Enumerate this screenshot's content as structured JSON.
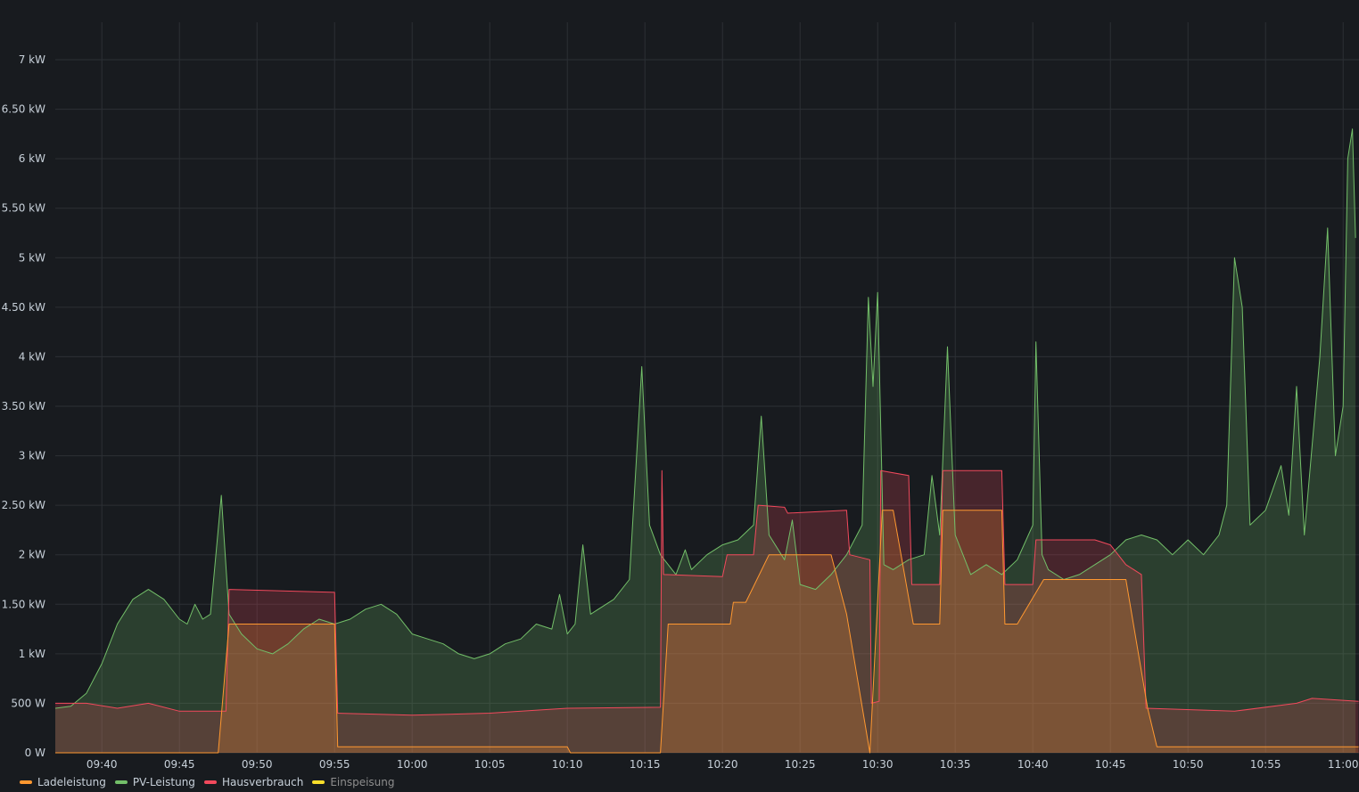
{
  "chart_data": {
    "type": "area",
    "y_ticks": [
      "0 W",
      "500 W",
      "1 kW",
      "1.50 kW",
      "2 kW",
      "2.50 kW",
      "3 kW",
      "3.50 kW",
      "4 kW",
      "4.50 kW",
      "5 kW",
      "5.50 kW",
      "6 kW",
      "6.50 kW",
      "7 kW"
    ],
    "x_ticks": [
      "09:40",
      "09:45",
      "09:50",
      "09:55",
      "10:00",
      "10:05",
      "10:10",
      "10:15",
      "10:20",
      "10:25",
      "10:30",
      "10:35",
      "10:40",
      "10:45",
      "10:50",
      "10:55",
      "11:00"
    ],
    "y_unit": "W",
    "ylim": [
      0,
      7000
    ],
    "grid": true,
    "legend_position": "bottom-left",
    "series": [
      {
        "name": "PV-Leistung",
        "color": "#73bf69",
        "points": [
          [
            "09:37",
            450
          ],
          [
            "09:38",
            470
          ],
          [
            "09:39",
            600
          ],
          [
            "09:40",
            900
          ],
          [
            "09:41",
            1300
          ],
          [
            "09:42",
            1550
          ],
          [
            "09:43",
            1650
          ],
          [
            "09:44",
            1550
          ],
          [
            "09:45",
            1350
          ],
          [
            "09:45.5",
            1300
          ],
          [
            "09:46",
            1500
          ],
          [
            "09:46.5",
            1350
          ],
          [
            "09:47",
            1400
          ],
          [
            "09:47.7",
            2600
          ],
          [
            "09:48.2",
            1400
          ],
          [
            "09:49",
            1200
          ],
          [
            "09:50",
            1050
          ],
          [
            "09:51",
            1000
          ],
          [
            "09:52",
            1100
          ],
          [
            "09:53",
            1250
          ],
          [
            "09:54",
            1350
          ],
          [
            "09:55",
            1300
          ],
          [
            "09:56",
            1350
          ],
          [
            "09:57",
            1450
          ],
          [
            "09:58",
            1500
          ],
          [
            "09:59",
            1400
          ],
          [
            "10:00",
            1200
          ],
          [
            "10:01",
            1150
          ],
          [
            "10:02",
            1100
          ],
          [
            "10:03",
            1000
          ],
          [
            "10:04",
            950
          ],
          [
            "10:05",
            1000
          ],
          [
            "10:06",
            1100
          ],
          [
            "10:07",
            1150
          ],
          [
            "10:08",
            1300
          ],
          [
            "10:09",
            1250
          ],
          [
            "10:09.5",
            1600
          ],
          [
            "10:10",
            1200
          ],
          [
            "10:10.5",
            1300
          ],
          [
            "10:11",
            2100
          ],
          [
            "10:11.5",
            1400
          ],
          [
            "10:12",
            1450
          ],
          [
            "10:13",
            1550
          ],
          [
            "10:14",
            1750
          ],
          [
            "10:14.8",
            3900
          ],
          [
            "10:15.3",
            2300
          ],
          [
            "10:16",
            2000
          ],
          [
            "10:17",
            1800
          ],
          [
            "10:17.6",
            2050
          ],
          [
            "10:18",
            1850
          ],
          [
            "10:19",
            2000
          ],
          [
            "10:20",
            2100
          ],
          [
            "10:21",
            2150
          ],
          [
            "10:22",
            2300
          ],
          [
            "10:22.5",
            3400
          ],
          [
            "10:23",
            2200
          ],
          [
            "10:24",
            1950
          ],
          [
            "10:24.5",
            2350
          ],
          [
            "10:25",
            1700
          ],
          [
            "10:26",
            1650
          ],
          [
            "10:27",
            1800
          ],
          [
            "10:28",
            2000
          ],
          [
            "10:29",
            2300
          ],
          [
            "10:29.4",
            4600
          ],
          [
            "10:29.7",
            3700
          ],
          [
            "10:30",
            4650
          ],
          [
            "10:30.4",
            1900
          ],
          [
            "10:31",
            1850
          ],
          [
            "10:32",
            1950
          ],
          [
            "10:33",
            2000
          ],
          [
            "10:33.5",
            2800
          ],
          [
            "10:34",
            2200
          ],
          [
            "10:34.5",
            4100
          ],
          [
            "10:35",
            2200
          ],
          [
            "10:36",
            1800
          ],
          [
            "10:37",
            1900
          ],
          [
            "10:38",
            1800
          ],
          [
            "10:39",
            1950
          ],
          [
            "10:40",
            2300
          ],
          [
            "10:40.2",
            4150
          ],
          [
            "10:40.6",
            2000
          ],
          [
            "10:41",
            1850
          ],
          [
            "10:42",
            1750
          ],
          [
            "10:43",
            1800
          ],
          [
            "10:44",
            1900
          ],
          [
            "10:45",
            2000
          ],
          [
            "10:46",
            2150
          ],
          [
            "10:47",
            2200
          ],
          [
            "10:48",
            2150
          ],
          [
            "10:49",
            2000
          ],
          [
            "10:50",
            2150
          ],
          [
            "10:51",
            2000
          ],
          [
            "10:52",
            2200
          ],
          [
            "10:52.5",
            2500
          ],
          [
            "10:53",
            5000
          ],
          [
            "10:53.5",
            4500
          ],
          [
            "10:54",
            2300
          ],
          [
            "10:55",
            2450
          ],
          [
            "10:56",
            2900
          ],
          [
            "10:56.5",
            2400
          ],
          [
            "10:57",
            3700
          ],
          [
            "10:57.5",
            2200
          ],
          [
            "10:58",
            3100
          ],
          [
            "10:58.5",
            4000
          ],
          [
            "10:59",
            5300
          ],
          [
            "10:59.5",
            3000
          ],
          [
            "11:00",
            3500
          ],
          [
            "11:00.3",
            6000
          ],
          [
            "11:00.6",
            6300
          ],
          [
            "11:00.8",
            5200
          ]
        ]
      },
      {
        "name": "Hausverbrauch",
        "color": "#f2495c",
        "points": [
          [
            "09:37",
            500
          ],
          [
            "09:39",
            500
          ],
          [
            "09:41",
            450
          ],
          [
            "09:43",
            500
          ],
          [
            "09:45",
            420
          ],
          [
            "09:48",
            420
          ],
          [
            "09:48.2",
            1650
          ],
          [
            "09:55",
            1620
          ],
          [
            "09:55.2",
            400
          ],
          [
            "10:00",
            380
          ],
          [
            "10:05",
            400
          ],
          [
            "10:10",
            450
          ],
          [
            "10:16",
            460
          ],
          [
            "10:16.1",
            2850
          ],
          [
            "10:16.2",
            1800
          ],
          [
            "10:20",
            1780
          ],
          [
            "10:20.3",
            2000
          ],
          [
            "10:22",
            2000
          ],
          [
            "10:22.3",
            2500
          ],
          [
            "10:24",
            2480
          ],
          [
            "10:24.2",
            2420
          ],
          [
            "10:28",
            2450
          ],
          [
            "10:28.2",
            2000
          ],
          [
            "10:29.5",
            1950
          ],
          [
            "10:29.6",
            500
          ],
          [
            "10:30.1",
            520
          ],
          [
            "10:30.2",
            2850
          ],
          [
            "10:32",
            2800
          ],
          [
            "10:32.2",
            1700
          ],
          [
            "10:34",
            1700
          ],
          [
            "10:34.2",
            2850
          ],
          [
            "10:38",
            2850
          ],
          [
            "10:38.2",
            1700
          ],
          [
            "10:40",
            1700
          ],
          [
            "10:40.2",
            2150
          ],
          [
            "10:44",
            2150
          ],
          [
            "10:45",
            2100
          ],
          [
            "10:46",
            1900
          ],
          [
            "10:47",
            1800
          ],
          [
            "10:47.3",
            450
          ],
          [
            "10:53",
            420
          ],
          [
            "10:57",
            500
          ],
          [
            "10:58",
            550
          ],
          [
            "11:01",
            520
          ]
        ]
      },
      {
        "name": "Ladeleistung",
        "color": "#ff9830",
        "points": [
          [
            "09:37",
            0
          ],
          [
            "09:47.5",
            0
          ],
          [
            "09:48.2",
            1300
          ],
          [
            "09:55",
            1300
          ],
          [
            "09:55.2",
            60
          ],
          [
            "10:10",
            60
          ],
          [
            "10:10.2",
            0
          ],
          [
            "10:16",
            0
          ],
          [
            "10:16.5",
            1300
          ],
          [
            "10:20.5",
            1300
          ],
          [
            "10:20.7",
            1520
          ],
          [
            "10:21.5",
            1520
          ],
          [
            "10:23",
            2000
          ],
          [
            "10:27",
            2000
          ],
          [
            "10:28",
            1400
          ],
          [
            "10:29.5",
            0
          ],
          [
            "10:30.3",
            2450
          ],
          [
            "10:31",
            2450
          ],
          [
            "10:32.3",
            1300
          ],
          [
            "10:34",
            1300
          ],
          [
            "10:34.2",
            2450
          ],
          [
            "10:38",
            2450
          ],
          [
            "10:38.2",
            1300
          ],
          [
            "10:39",
            1300
          ],
          [
            "10:40.7",
            1750
          ],
          [
            "10:46",
            1750
          ],
          [
            "10:47.4",
            450
          ],
          [
            "10:48",
            60
          ],
          [
            "11:01",
            60
          ]
        ]
      },
      {
        "name": "Einspeisung",
        "color": "#fade2a",
        "points": []
      }
    ],
    "legend": [
      {
        "name": "Ladeleistung",
        "color": "#ff9830",
        "dim": false
      },
      {
        "name": "PV-Leistung",
        "color": "#73bf69",
        "dim": false
      },
      {
        "name": "Hausverbrauch",
        "color": "#f2495c",
        "dim": false
      },
      {
        "name": "Einspeisung",
        "color": "#fade2a",
        "dim": true
      }
    ]
  },
  "colors": {
    "background": "#181b1f",
    "grid": "#2c3035",
    "text": "#c7d0d9",
    "text_dim": "#8e8e8e"
  }
}
